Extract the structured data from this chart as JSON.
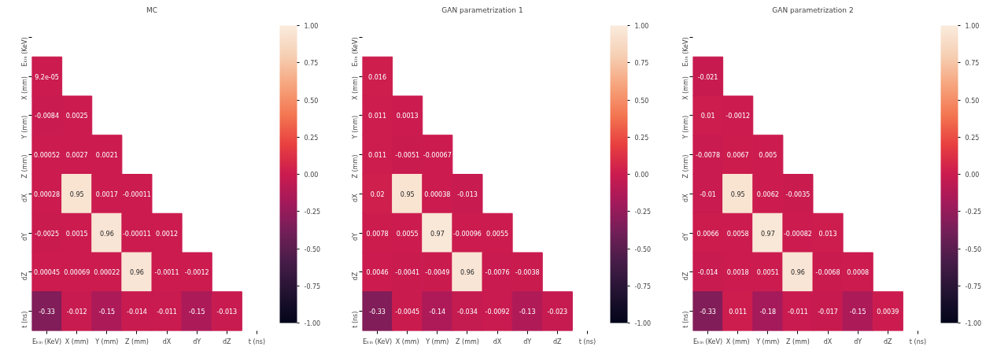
{
  "chart_data": [
    {
      "type": "heatmap",
      "title": "MC",
      "categories": [
        "Eₖᵢₙ (KeV)",
        "X (mm)",
        "Y (mm)",
        "Z (mm)",
        "dX",
        "dY",
        "dZ",
        "t (ns)"
      ],
      "y_categories": [
        "Eₖᵢₙ (KeV)",
        "X (mm)",
        "Y (mm)",
        "Z (mm)",
        "dX",
        "dY",
        "dZ",
        "t (ns)"
      ],
      "cells": [
        [
          null,
          null,
          null,
          null,
          null,
          null,
          null,
          null
        ],
        [
          9.2e-05,
          null,
          null,
          null,
          null,
          null,
          null,
          null
        ],
        [
          -0.0084,
          0.0025,
          null,
          null,
          null,
          null,
          null,
          null
        ],
        [
          0.00052,
          0.0027,
          0.0021,
          null,
          null,
          null,
          null,
          null
        ],
        [
          0.00028,
          0.95,
          0.0017,
          -0.00011,
          null,
          null,
          null,
          null
        ],
        [
          -0.0025,
          0.0015,
          0.96,
          -0.00011,
          0.0012,
          null,
          null,
          null
        ],
        [
          0.00045,
          0.00069,
          0.00022,
          0.96,
          -0.0011,
          -0.0012,
          null,
          null
        ],
        [
          -0.33,
          -0.012,
          -0.15,
          -0.014,
          -0.011,
          -0.15,
          -0.013,
          null
        ]
      ],
      "cell_labels": [
        [
          null,
          null,
          null,
          null,
          null,
          null,
          null,
          null
        ],
        [
          "9.2e-05",
          null,
          null,
          null,
          null,
          null,
          null,
          null
        ],
        [
          "-0.0084",
          "0.0025",
          null,
          null,
          null,
          null,
          null,
          null
        ],
        [
          "0.00052",
          "0.0027",
          "0.0021",
          null,
          null,
          null,
          null,
          null
        ],
        [
          "0.00028",
          "0.95",
          "0.0017",
          "-0.00011",
          null,
          null,
          null,
          null
        ],
        [
          "-0.0025",
          "0.0015",
          "0.96",
          "-0.00011",
          "0.0012",
          null,
          null,
          null
        ],
        [
          "0.00045",
          "0.00069",
          "0.00022",
          "0.96",
          "-0.0011",
          "-0.0012",
          null,
          null
        ],
        [
          "-0.33",
          "-0.012",
          "-0.15",
          "-0.014",
          "-0.011",
          "-0.15",
          "-0.013",
          null
        ]
      ],
      "clim": [
        -1,
        1
      ],
      "cticks": [
        {
          "value": -1,
          "label": "-1.00"
        },
        {
          "value": -0.75,
          "label": "-0.75"
        },
        {
          "value": -0.5,
          "label": "-0.50"
        },
        {
          "value": -0.25,
          "label": "-0.25"
        },
        {
          "value": 0,
          "label": "0.00"
        },
        {
          "value": 0.25,
          "label": "0.25"
        },
        {
          "value": 0.5,
          "label": "0.50"
        },
        {
          "value": 0.75,
          "label": "0.75"
        },
        {
          "value": 1,
          "label": "1.00"
        }
      ]
    },
    {
      "type": "heatmap",
      "title": "GAN parametrization 1",
      "categories": [
        "Eₖᵢₙ (KeV)",
        "X (mm)",
        "Y (mm)",
        "Z (mm)",
        "dX",
        "dY",
        "dZ",
        "t (ns)"
      ],
      "y_categories": [
        "Eₖᵢₙ (KeV)",
        "X (mm)",
        "Y (mm)",
        "Z (mm)",
        "dX",
        "dY",
        "dZ",
        "t (ns)"
      ],
      "cells": [
        [
          null,
          null,
          null,
          null,
          null,
          null,
          null,
          null
        ],
        [
          0.016,
          null,
          null,
          null,
          null,
          null,
          null,
          null
        ],
        [
          0.011,
          0.0013,
          null,
          null,
          null,
          null,
          null,
          null
        ],
        [
          0.011,
          -0.0051,
          -0.00067,
          null,
          null,
          null,
          null,
          null
        ],
        [
          0.02,
          0.95,
          0.00038,
          -0.013,
          null,
          null,
          null,
          null
        ],
        [
          0.0078,
          0.0055,
          0.97,
          -0.00096,
          0.0055,
          null,
          null,
          null
        ],
        [
          0.0046,
          -0.0041,
          -0.0049,
          0.96,
          -0.0076,
          -0.0038,
          null,
          null
        ],
        [
          -0.33,
          -0.0045,
          -0.14,
          -0.034,
          -0.0092,
          -0.13,
          -0.023,
          null
        ]
      ],
      "cell_labels": [
        [
          null,
          null,
          null,
          null,
          null,
          null,
          null,
          null
        ],
        [
          "0.016",
          null,
          null,
          null,
          null,
          null,
          null,
          null
        ],
        [
          "0.011",
          "0.0013",
          null,
          null,
          null,
          null,
          null,
          null
        ],
        [
          "0.011",
          "-0.0051",
          "-0.00067",
          null,
          null,
          null,
          null,
          null
        ],
        [
          "0.02",
          "0.95",
          "0.00038",
          "-0.013",
          null,
          null,
          null,
          null
        ],
        [
          "0.0078",
          "0.0055",
          "0.97",
          "-0.00096",
          "0.0055",
          null,
          null,
          null
        ],
        [
          "0.0046",
          "-0.0041",
          "-0.0049",
          "0.96",
          "-0.0076",
          "-0.0038",
          null,
          null
        ],
        [
          "-0.33",
          "-0.0045",
          "-0.14",
          "-0.034",
          "-0.0092",
          "-0.13",
          "-0.023",
          null
        ]
      ],
      "clim": [
        -1,
        1
      ],
      "cticks": [
        {
          "value": -1,
          "label": "-1.00"
        },
        {
          "value": -0.75,
          "label": "-0.75"
        },
        {
          "value": -0.5,
          "label": "-0.50"
        },
        {
          "value": -0.25,
          "label": "-0.25"
        },
        {
          "value": 0,
          "label": "0.00"
        },
        {
          "value": 0.25,
          "label": "0.25"
        },
        {
          "value": 0.5,
          "label": "0.50"
        },
        {
          "value": 0.75,
          "label": "0.75"
        },
        {
          "value": 1,
          "label": "1.00"
        }
      ]
    },
    {
      "type": "heatmap",
      "title": "GAN parametrization 2",
      "categories": [
        "Eₖᵢₙ (KeV)",
        "X (mm)",
        "Y (mm)",
        "Z (mm)",
        "dX",
        "dY",
        "dZ",
        "t (ns)"
      ],
      "y_categories": [
        "Eₖᵢₙ (KeV)",
        "X (mm)",
        "Y (mm)",
        "Z (mm)",
        "dX",
        "dY",
        "dZ",
        "t (ns)"
      ],
      "cells": [
        [
          null,
          null,
          null,
          null,
          null,
          null,
          null,
          null
        ],
        [
          -0.021,
          null,
          null,
          null,
          null,
          null,
          null,
          null
        ],
        [
          0.01,
          -0.0012,
          null,
          null,
          null,
          null,
          null,
          null
        ],
        [
          -0.0078,
          0.0067,
          0.005,
          null,
          null,
          null,
          null,
          null
        ],
        [
          -0.01,
          0.95,
          0.0062,
          -0.0035,
          null,
          null,
          null,
          null
        ],
        [
          0.0066,
          0.0058,
          0.97,
          -0.00082,
          0.013,
          null,
          null,
          null
        ],
        [
          -0.014,
          0.0018,
          0.0051,
          0.96,
          -0.0068,
          0.0008,
          null,
          null
        ],
        [
          -0.33,
          0.011,
          -0.18,
          -0.011,
          -0.017,
          -0.15,
          0.0039,
          null
        ]
      ],
      "cell_labels": [
        [
          null,
          null,
          null,
          null,
          null,
          null,
          null,
          null
        ],
        [
          "-0.021",
          null,
          null,
          null,
          null,
          null,
          null,
          null
        ],
        [
          "0.01",
          "-0.0012",
          null,
          null,
          null,
          null,
          null,
          null
        ],
        [
          "-0.0078",
          "0.0067",
          "0.005",
          null,
          null,
          null,
          null,
          null
        ],
        [
          "-0.01",
          "0.95",
          "0.0062",
          "-0.0035",
          null,
          null,
          null,
          null
        ],
        [
          "0.0066",
          "0.0058",
          "0.97",
          "-0.00082",
          "0.013",
          null,
          null,
          null
        ],
        [
          "-0.014",
          "0.0018",
          "0.0051",
          "0.96",
          "-0.0068",
          "0.0008",
          null,
          null
        ],
        [
          "-0.33",
          "0.011",
          "-0.18",
          "-0.011",
          "-0.017",
          "-0.15",
          "0.0039",
          null
        ]
      ],
      "clim": [
        -1,
        1
      ],
      "cticks": [
        {
          "value": -1,
          "label": "-1.00"
        },
        {
          "value": -0.75,
          "label": "-0.75"
        },
        {
          "value": -0.5,
          "label": "-0.50"
        },
        {
          "value": -0.25,
          "label": "-0.25"
        },
        {
          "value": 0,
          "label": "0.00"
        },
        {
          "value": 0.25,
          "label": "0.25"
        },
        {
          "value": 0.5,
          "label": "0.50"
        },
        {
          "value": 0.75,
          "label": "0.75"
        },
        {
          "value": 1,
          "label": "1.00"
        }
      ]
    }
  ]
}
